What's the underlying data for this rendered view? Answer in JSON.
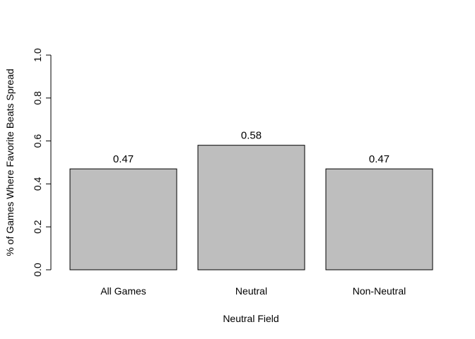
{
  "chart_data": {
    "type": "bar",
    "title": "",
    "xlabel": "Neutral Field",
    "ylabel": "% of Games Where Favorite Beats Spread",
    "categories": [
      "All Games",
      "Neutral",
      "Non-Neutral"
    ],
    "values": [
      0.47,
      0.58,
      0.47
    ],
    "value_labels": [
      "0.47",
      "0.58",
      "0.47"
    ],
    "ylim": [
      0,
      1
    ],
    "yticks": [
      0,
      0.2,
      0.4,
      0.6,
      0.8,
      1
    ],
    "ytick_labels": [
      "0.0",
      "0.2",
      "0.4",
      "0.6",
      "0.8",
      "1.0"
    ],
    "grid": false,
    "legend": "none",
    "colors": {
      "bar_fill": "#bebebe",
      "bar_stroke": "#000000"
    }
  }
}
